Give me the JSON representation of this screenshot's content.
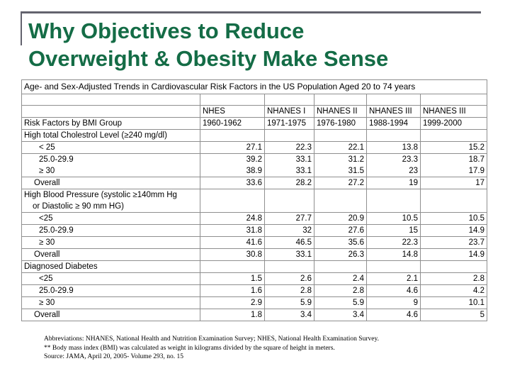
{
  "slide": {
    "title_line1": "Why Objectives to Reduce",
    "title_line2": "Overweight & Obesity Make Sense",
    "title_color": "#146c46",
    "accent_rule_color": "#63636e"
  },
  "table": {
    "caption": "Age- and Sex-Adjusted Trends in Cardiovascular Risk Factors in the US Population Aged 20 to 74 years",
    "header": {
      "row_label": "Risk Factors by BMI Group",
      "surveys": [
        "NHES",
        "NHANES I",
        "NHANES II",
        "NHANES III",
        "NHANES III"
      ],
      "years": [
        "1960-1962",
        "1971-1975",
        "1976-1980",
        "1988-1994",
        "1999-2000"
      ]
    },
    "rows": [
      {
        "label": "High total Cholestrol Level (≥240 mg/dl)",
        "type": "section",
        "no_bottom_border": false,
        "values": [
          "",
          "",
          "",
          "",
          ""
        ]
      },
      {
        "label": "< 25",
        "type": "sub",
        "no_bottom_border": false,
        "values": [
          "27.1",
          "22.3",
          "22.1",
          "13.8",
          "15.2"
        ]
      },
      {
        "label": "25.0-29.9",
        "type": "sub",
        "no_bottom_border": true,
        "values": [
          "39.2",
          "33.1",
          "31.2",
          "23.3",
          "18.7"
        ]
      },
      {
        "label": "≥ 30",
        "type": "sub",
        "no_bottom_border": false,
        "values": [
          "38.9",
          "33.1",
          "31.5",
          "23",
          "17.9"
        ]
      },
      {
        "label": "Overall",
        "type": "overall",
        "no_bottom_border": false,
        "values": [
          "33.6",
          "28.2",
          "27.2",
          "19",
          "17"
        ]
      },
      {
        "label": "High Blood Pressure (systolic ≥140mm Hg",
        "type": "section",
        "no_bottom_border": true,
        "values": [
          "",
          "",
          "",
          "",
          ""
        ]
      },
      {
        "label": "or Diastolic ≥ 90 mm HG)",
        "type": "wrap",
        "no_bottom_border": false,
        "values": [
          "",
          "",
          "",
          "",
          ""
        ]
      },
      {
        "label": "<25",
        "type": "sub",
        "no_bottom_border": false,
        "values": [
          "24.8",
          "27.7",
          "20.9",
          "10.5",
          "10.5"
        ]
      },
      {
        "label": "25.0-29.9",
        "type": "sub",
        "no_bottom_border": false,
        "values": [
          "31.8",
          "32",
          "27.6",
          "15",
          "14.9"
        ]
      },
      {
        "label": "≥ 30",
        "type": "sub",
        "no_bottom_border": false,
        "values": [
          "41.6",
          "46.5",
          "35.6",
          "22.3",
          "23.7"
        ]
      },
      {
        "label": "Overall",
        "type": "overall",
        "no_bottom_border": false,
        "values": [
          "30.8",
          "33.1",
          "26.3",
          "14.8",
          "14.9"
        ]
      },
      {
        "label": "Diagnosed Diabetes",
        "type": "section",
        "no_bottom_border": false,
        "values": [
          "",
          "",
          "",
          "",
          ""
        ]
      },
      {
        "label": "<25",
        "type": "sub",
        "no_bottom_border": false,
        "values": [
          "1.5",
          "2.6",
          "2.4",
          "2.1",
          "2.8"
        ]
      },
      {
        "label": "25.0-29.9",
        "type": "sub",
        "no_bottom_border": false,
        "values": [
          "1.6",
          "2.8",
          "2.8",
          "4.6",
          "4.2"
        ]
      },
      {
        "label": "≥ 30",
        "type": "sub",
        "no_bottom_border": false,
        "values": [
          "2.9",
          "5.9",
          "5.9",
          "9",
          "10.1"
        ]
      },
      {
        "label": "Overall",
        "type": "overall",
        "no_bottom_border": false,
        "values": [
          "1.8",
          "3.4",
          "3.4",
          "4.6",
          "5"
        ]
      }
    ]
  },
  "footnotes": [
    "Abbreviations: NHANES, National Health and Nutrition Examination Survey; NHES, National Health Examination Survey.",
    "** Body mass index (BMI) was calculated as weight in kilograms divided by the square of height in meters.",
    "Source: JAMA, April 20, 2005- Volume 293, no. 15"
  ]
}
